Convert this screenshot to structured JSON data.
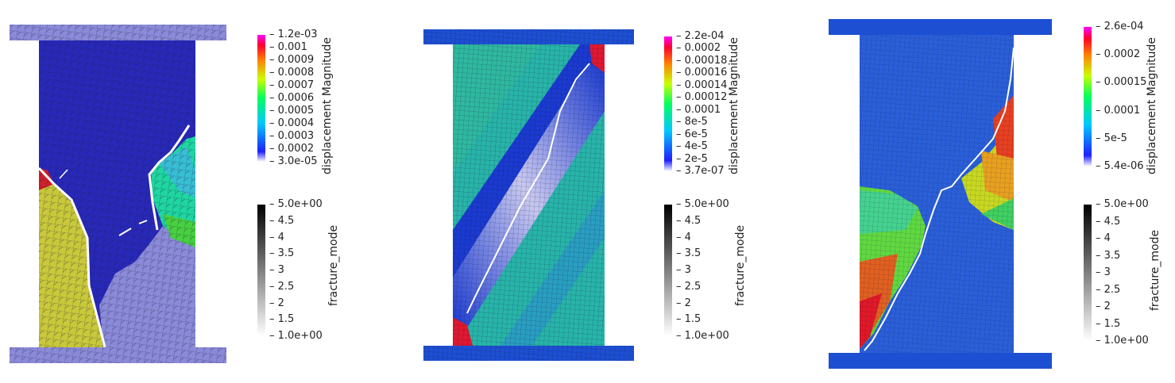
{
  "panels": [
    {
      "displacement_title": "displacement Magnitude",
      "displacement_ticks": [
        "1.2e-03",
        "0.001",
        "0.0009",
        "0.0008",
        "0.0007",
        "0.0006",
        "0.0005",
        "0.0004",
        "0.0003",
        "0.0002",
        "3.0e-05"
      ],
      "fracture_title": "fracture_mode",
      "fracture_ticks": [
        "5.0e+00",
        "4.5",
        "4",
        "3.5",
        "3",
        "2.5",
        "2",
        "1.5",
        "1.0e+00"
      ]
    },
    {
      "displacement_title": "displacement Magnitude",
      "displacement_ticks": [
        "2.2e-04",
        "0.0002",
        "0.00018",
        "0.00016",
        "0.00014",
        "0.00012",
        "0.0001",
        "8e-5",
        "6e-5",
        "4e-5",
        "2e-5",
        "3.7e-07"
      ],
      "fracture_title": "fracture_mode",
      "fracture_ticks": [
        "5.0e+00",
        "4.5",
        "4",
        "3.5",
        "3",
        "2.5",
        "2",
        "1.5",
        "1.0e+00"
      ]
    },
    {
      "displacement_title": "displacement Magnitude",
      "displacement_ticks": [
        "2.6e-04",
        "0.0002",
        "0.00015",
        "0.0001",
        "5e-5",
        "5.4e-06"
      ],
      "fracture_title": "fracture_mode",
      "fracture_ticks": [
        "5.0e+00",
        "4.5",
        "4",
        "3.5",
        "3",
        "2.5",
        "2",
        "1.5",
        "1.0e+00"
      ]
    }
  ]
}
